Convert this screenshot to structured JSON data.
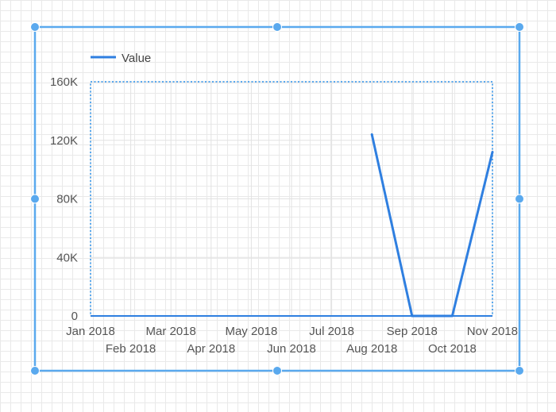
{
  "selection_color": "#5aa9ee",
  "series_color": "#2f7fe0",
  "chart_data": {
    "type": "line",
    "x": [
      "Jan 2018",
      "Feb 2018",
      "Mar 2018",
      "Apr 2018",
      "May 2018",
      "Jun 2018",
      "Jul 2018",
      "Aug 2018",
      "Sep 2018",
      "Oct 2018",
      "Nov 2018"
    ],
    "series": [
      {
        "name": "Value",
        "values": [
          null,
          null,
          null,
          null,
          null,
          null,
          null,
          124000,
          0,
          0,
          112000
        ]
      }
    ],
    "ylim": [
      0,
      160000
    ],
    "y_ticks": [
      0,
      40000,
      80000,
      120000,
      160000
    ],
    "y_tick_labels": [
      "0",
      "40K",
      "80K",
      "120K",
      "160K"
    ],
    "grid": true,
    "legend": "top-left"
  }
}
